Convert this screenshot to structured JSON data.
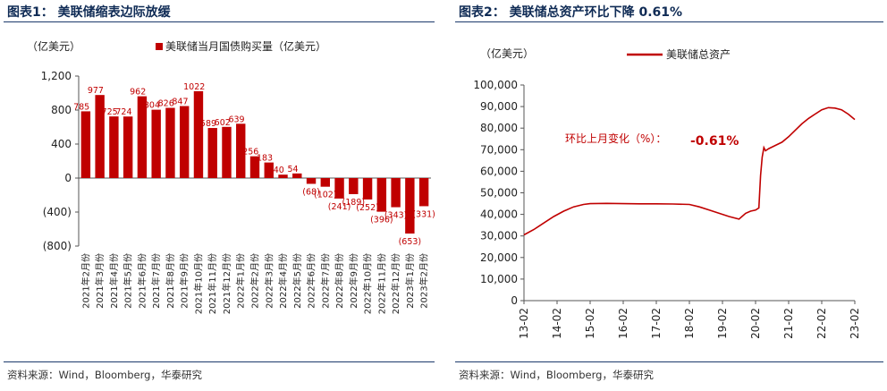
{
  "figure1": {
    "title": "图表1：   美联储缩表边际放缓",
    "source": "资料来源：Wind，Bloomberg，华泰研究"
  },
  "figure2": {
    "title": "图表2：   美联储总资产环比下降 0.61%",
    "source": "资料来源：Wind，Bloomberg，华泰研究"
  },
  "chart_data": [
    {
      "type": "bar",
      "title": "美联储缩表边际放缓",
      "ylabel": "（亿美元）",
      "legend": "美联储当月国债购买量（亿美元）",
      "color": "#c00000",
      "ylim": [
        -800,
        1200
      ],
      "yticks": [
        -800,
        -400,
        0,
        400,
        800,
        1200
      ],
      "ytick_labels": [
        "(800)",
        "(400)",
        "0",
        "400",
        "800",
        "1,200"
      ],
      "categories": [
        "2021年2月份",
        "2021年3月份",
        "2021年4月份",
        "2021年5月份",
        "2021年6月份",
        "2021年7月份",
        "2021年8月份",
        "2021年9月份",
        "2021年10月份",
        "2021年11月份",
        "2021年12月份",
        "2022年1月份",
        "2022年2月份",
        "2022年3月份",
        "2022年4月份",
        "2022年5月份",
        "2022年6月份",
        "2022年7月份",
        "2022年8月份",
        "2022年9月份",
        "2022年10月份",
        "2022年11月份",
        "2022年12月份",
        "2023年1月份",
        "2023年2月份"
      ],
      "values": [
        785,
        977,
        725,
        724,
        962,
        804,
        826,
        847,
        1022,
        589,
        602,
        639,
        256,
        183,
        40,
        54,
        -68,
        -102,
        -241,
        -189,
        -252,
        -396,
        -343,
        -653,
        -331
      ],
      "value_labels": [
        "785",
        "977",
        "725",
        "724",
        "962",
        "804",
        "826",
        "847",
        "1022",
        "589",
        "602",
        "639",
        "256",
        "183",
        "40",
        "54",
        "(68)",
        "(102)",
        "(241)",
        "(189)",
        "(252)",
        "(396)",
        "(343)",
        "(653)",
        "(331)"
      ]
    },
    {
      "type": "line",
      "title": "美联储总资产环比下降 0.61%",
      "ylabel": "（亿美元）",
      "legend": "美联储总资产",
      "color": "#c00000",
      "ylim": [
        0,
        100000
      ],
      "yticks": [
        0,
        10000,
        20000,
        30000,
        40000,
        50000,
        60000,
        70000,
        80000,
        90000,
        100000
      ],
      "ytick_labels": [
        "0",
        "10,000",
        "20,000",
        "30,000",
        "40,000",
        "50,000",
        "60,000",
        "70,000",
        "80,000",
        "90,000",
        "100,000"
      ],
      "xlim": [
        2013.0,
        2023.0
      ],
      "xticks": [
        2013,
        2014,
        2015,
        2016,
        2017,
        2018,
        2019,
        2020,
        2021,
        2022,
        2023
      ],
      "xtick_labels": [
        "13-02",
        "14-02",
        "15-02",
        "16-02",
        "17-02",
        "18-02",
        "19-02",
        "20-02",
        "21-02",
        "22-02",
        "23-02"
      ],
      "annotation_label": "环比上月变化（%）：",
      "annotation_value": "-0.61%",
      "x": [
        2013.0,
        2013.3,
        2013.6,
        2013.9,
        2014.2,
        2014.5,
        2014.8,
        2015.0,
        2015.5,
        2016.0,
        2016.5,
        2017.0,
        2017.5,
        2018.0,
        2018.3,
        2018.6,
        2018.9,
        2019.2,
        2019.5,
        2019.7,
        2019.85,
        2020.0,
        2020.1,
        2020.15,
        2020.2,
        2020.25,
        2020.3,
        2020.4,
        2020.6,
        2020.8,
        2021.0,
        2021.2,
        2021.4,
        2021.6,
        2021.8,
        2022.0,
        2022.2,
        2022.4,
        2022.6,
        2022.8,
        2023.0
      ],
      "values": [
        30500,
        33000,
        36000,
        39000,
        41500,
        43500,
        44600,
        45000,
        45100,
        45000,
        44900,
        44900,
        44800,
        44600,
        43500,
        42000,
        40500,
        39000,
        37800,
        40500,
        41500,
        42000,
        43000,
        58000,
        66500,
        71000,
        69500,
        70500,
        72000,
        73500,
        76000,
        79000,
        82000,
        84500,
        86500,
        88500,
        89500,
        89300,
        88500,
        86500,
        84000
      ]
    }
  ]
}
